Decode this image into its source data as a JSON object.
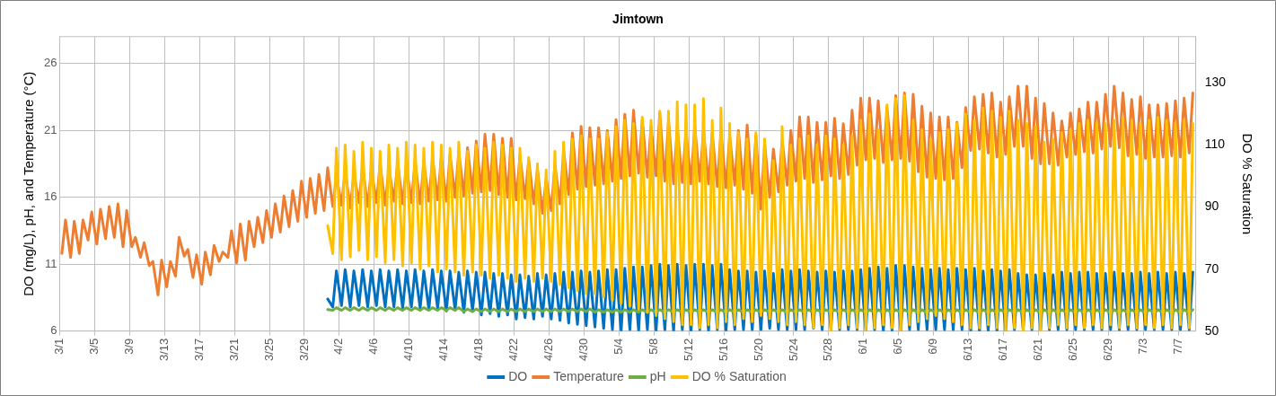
{
  "chart_data": {
    "type": "line",
    "title": "Jimtown",
    "ylabel": "DO (mg/L), pH, and Temperature (°C)",
    "y2label": "DO % Saturation",
    "xlim": [
      "--03-01",
      "--07-09"
    ],
    "ylim": [
      6,
      28
    ],
    "y2lim": [
      50,
      145
    ],
    "yticks": [
      6,
      11,
      16,
      21,
      26
    ],
    "y2ticks": [
      50,
      70,
      90,
      110,
      130
    ],
    "xticks": [
      {
        "value": "--03-01",
        "label": "3/1"
      },
      {
        "value": "--03-05",
        "label": "3/5"
      },
      {
        "value": "--03-09",
        "label": "3/9"
      },
      {
        "value": "--03-13",
        "label": "3/13"
      },
      {
        "value": "--03-17",
        "label": "3/17"
      },
      {
        "value": "--03-21",
        "label": "3/21"
      },
      {
        "value": "--03-25",
        "label": "3/25"
      },
      {
        "value": "--03-29",
        "label": "3/29"
      },
      {
        "value": "--04-02",
        "label": "4/2"
      },
      {
        "value": "--04-06",
        "label": "4/6"
      },
      {
        "value": "--04-10",
        "label": "4/10"
      },
      {
        "value": "--04-14",
        "label": "4/14"
      },
      {
        "value": "--04-18",
        "label": "4/18"
      },
      {
        "value": "--04-22",
        "label": "4/22"
      },
      {
        "value": "--04-26",
        "label": "4/26"
      },
      {
        "value": "--04-30",
        "label": "4/30"
      },
      {
        "value": "--05-04",
        "label": "5/4"
      },
      {
        "value": "--05-08",
        "label": "5/8"
      },
      {
        "value": "--05-12",
        "label": "5/12"
      },
      {
        "value": "--05-16",
        "label": "5/16"
      },
      {
        "value": "--05-20",
        "label": "5/20"
      },
      {
        "value": "--05-24",
        "label": "5/24"
      },
      {
        "value": "--05-28",
        "label": "5/28"
      },
      {
        "value": "--06-01",
        "label": "6/1"
      },
      {
        "value": "--06-05",
        "label": "6/5"
      },
      {
        "value": "--06-09",
        "label": "6/9"
      },
      {
        "value": "--06-13",
        "label": "6/13"
      },
      {
        "value": "--06-17",
        "label": "6/17"
      },
      {
        "value": "--06-21",
        "label": "6/21"
      },
      {
        "value": "--06-25",
        "label": "6/25"
      },
      {
        "value": "--06-29",
        "label": "6/29"
      },
      {
        "value": "--07-03",
        "label": "7/3"
      },
      {
        "value": "--07-07",
        "label": "7/7"
      }
    ],
    "grid": true,
    "legend": "bottom",
    "marker": "none",
    "line_style": "solid",
    "x": [
      "--03-01T06:00",
      "--03-01T16:00",
      "--03-02T06:00",
      "--03-02T16:00",
      "--03-03T06:00",
      "--03-03T16:00",
      "--03-04T06:00",
      "--03-04T16:00",
      "--03-05T06:00",
      "--03-05T16:00",
      "--03-06T06:00",
      "--03-06T16:00",
      "--03-07T06:00",
      "--03-07T16:00",
      "--03-08T06:00",
      "--03-08T16:00",
      "--03-09T06:00",
      "--03-09T16:00",
      "--03-10T06:00",
      "--03-10T16:00",
      "--03-11T06:00",
      "--03-11T16:00",
      "--03-12T06:00",
      "--03-12T16:00",
      "--03-13T06:00",
      "--03-13T16:00",
      "--03-14T06:00",
      "--03-14T16:00",
      "--03-15T06:00",
      "--03-15T16:00",
      "--03-16T06:00",
      "--03-16T16:00",
      "--03-17T06:00",
      "--03-17T16:00",
      "--03-18T06:00",
      "--03-18T16:00",
      "--03-19T06:00",
      "--03-19T16:00",
      "--03-20T06:00",
      "--03-20T16:00",
      "--03-21T06:00",
      "--03-21T16:00",
      "--03-22T06:00",
      "--03-22T16:00",
      "--03-23T06:00",
      "--03-23T16:00",
      "--03-24T06:00",
      "--03-24T16:00",
      "--03-25T06:00",
      "--03-25T16:00",
      "--03-26T06:00",
      "--03-26T16:00",
      "--03-27T06:00",
      "--03-27T16:00",
      "--03-28T06:00",
      "--03-28T16:00",
      "--03-29T06:00",
      "--03-29T16:00",
      "--03-30T06:00",
      "--03-30T16:00",
      "--03-31T06:00",
      "--03-31T16:00",
      "--04-01T06:00",
      "--04-01T16:00",
      "--04-02T06:00",
      "--04-02T16:00",
      "--04-03T06:00",
      "--04-03T16:00",
      "--04-04T06:00",
      "--04-04T16:00",
      "--04-05T06:00",
      "--04-05T16:00",
      "--04-06T06:00",
      "--04-06T16:00",
      "--04-07T06:00",
      "--04-07T16:00",
      "--04-08T06:00",
      "--04-08T16:00",
      "--04-09T06:00",
      "--04-09T16:00",
      "--04-10T06:00",
      "--04-10T16:00",
      "--04-11T06:00",
      "--04-11T16:00",
      "--04-12T06:00",
      "--04-12T16:00",
      "--04-13T06:00",
      "--04-13T16:00",
      "--04-14T06:00",
      "--04-14T16:00",
      "--04-15T06:00",
      "--04-15T16:00",
      "--04-16T06:00",
      "--04-16T16:00",
      "--04-17T06:00",
      "--04-17T16:00",
      "--04-18T06:00",
      "--04-18T16:00",
      "--04-19T06:00",
      "--04-19T16:00",
      "--04-20T06:00",
      "--04-20T16:00",
      "--04-21T06:00",
      "--04-21T16:00",
      "--04-22T06:00",
      "--04-22T16:00",
      "--04-23T06:00",
      "--04-23T16:00",
      "--04-24T06:00",
      "--04-24T16:00",
      "--04-25T06:00",
      "--04-25T16:00",
      "--04-26T06:00",
      "--04-26T16:00",
      "--04-27T06:00",
      "--04-27T16:00",
      "--04-28T06:00",
      "--04-28T16:00",
      "--04-29T06:00",
      "--04-29T16:00",
      "--04-30T06:00",
      "--04-30T16:00",
      "--05-01T06:00",
      "--05-01T16:00",
      "--05-02T06:00",
      "--05-02T16:00",
      "--05-03T06:00",
      "--05-03T16:00",
      "--05-04T06:00",
      "--05-04T16:00",
      "--05-05T06:00",
      "--05-05T16:00",
      "--05-06T06:00",
      "--05-06T16:00",
      "--05-07T06:00",
      "--05-07T16:00",
      "--05-08T06:00",
      "--05-08T16:00",
      "--05-09T06:00",
      "--05-09T16:00",
      "--05-10T06:00",
      "--05-10T16:00",
      "--05-11T06:00",
      "--05-11T16:00",
      "--05-12T06:00",
      "--05-12T16:00",
      "--05-13T06:00",
      "--05-13T16:00",
      "--05-14T06:00",
      "--05-14T16:00",
      "--05-15T06:00",
      "--05-15T16:00",
      "--05-16T06:00",
      "--05-16T16:00",
      "--05-17T06:00",
      "--05-17T16:00",
      "--05-18T06:00",
      "--05-18T16:00",
      "--05-19T06:00",
      "--05-19T16:00",
      "--05-20T06:00",
      "--05-20T16:00",
      "--05-21T06:00",
      "--05-21T16:00",
      "--05-22T06:00",
      "--05-22T16:00",
      "--05-23T06:00",
      "--05-23T16:00",
      "--05-24T06:00",
      "--05-24T16:00",
      "--05-25T06:00",
      "--05-25T16:00",
      "--05-26T06:00",
      "--05-26T16:00",
      "--05-27T06:00",
      "--05-27T16:00",
      "--05-28T06:00",
      "--05-28T16:00",
      "--05-29T06:00",
      "--05-29T16:00",
      "--05-30T06:00",
      "--05-30T16:00",
      "--05-31T06:00",
      "--05-31T16:00",
      "--06-01T06:00",
      "--06-01T16:00",
      "--06-02T06:00",
      "--06-02T16:00",
      "--06-03T06:00",
      "--06-03T16:00",
      "--06-04T06:00",
      "--06-04T16:00",
      "--06-05T06:00",
      "--06-05T16:00",
      "--06-06T06:00",
      "--06-06T16:00",
      "--06-07T06:00",
      "--06-07T16:00",
      "--06-08T06:00",
      "--06-08T16:00",
      "--06-09T06:00",
      "--06-09T16:00",
      "--06-10T06:00",
      "--06-10T16:00",
      "--06-11T06:00",
      "--06-11T16:00",
      "--06-12T06:00",
      "--06-12T16:00",
      "--06-13T06:00",
      "--06-13T16:00",
      "--06-14T06:00",
      "--06-14T16:00",
      "--06-15T06:00",
      "--06-15T16:00",
      "--06-16T06:00",
      "--06-16T16:00",
      "--06-17T06:00",
      "--06-17T16:00",
      "--06-18T06:00",
      "--06-18T16:00",
      "--06-19T06:00",
      "--06-19T16:00",
      "--06-20T06:00",
      "--06-20T16:00",
      "--06-21T06:00",
      "--06-21T16:00",
      "--06-22T06:00",
      "--06-22T16:00",
      "--06-23T06:00",
      "--06-23T16:00",
      "--06-24T06:00",
      "--06-24T16:00",
      "--06-25T06:00",
      "--06-25T16:00",
      "--06-26T06:00",
      "--06-26T16:00",
      "--06-27T06:00",
      "--06-27T16:00",
      "--06-28T06:00",
      "--06-28T16:00",
      "--06-29T06:00",
      "--06-29T16:00",
      "--06-30T06:00",
      "--06-30T16:00",
      "--07-01T06:00",
      "--07-01T16:00",
      "--07-02T06:00",
      "--07-02T16:00",
      "--07-03T06:00",
      "--07-03T16:00",
      "--07-04T06:00",
      "--07-04T16:00",
      "--07-05T06:00",
      "--07-05T16:00",
      "--07-06T06:00",
      "--07-06T16:00",
      "--07-07T06:00",
      "--07-07T16:00",
      "--07-08T06:00",
      "--07-08T16:00"
    ],
    "series": [
      {
        "name": "DO",
        "color": "#0070c0",
        "values": [
          null,
          null,
          null,
          null,
          null,
          null,
          null,
          null,
          null,
          null,
          null,
          null,
          null,
          null,
          null,
          null,
          null,
          null,
          null,
          null,
          null,
          null,
          null,
          null,
          null,
          null,
          null,
          null,
          null,
          null,
          null,
          null,
          null,
          null,
          null,
          null,
          null,
          null,
          null,
          null,
          null,
          null,
          null,
          null,
          null,
          null,
          null,
          null,
          null,
          null,
          null,
          null,
          null,
          null,
          null,
          null,
          null,
          null,
          null,
          null,
          null,
          8.4,
          7.8,
          10.5,
          7.9,
          10.6,
          7.8,
          10.5,
          7.9,
          10.6,
          7.8,
          10.5,
          7.9,
          10.6,
          7.8,
          10.5,
          7.8,
          10.6,
          7.7,
          10.5,
          7.8,
          10.6,
          7.7,
          10.5,
          7.6,
          10.6,
          7.7,
          10.5,
          7.5,
          10.5,
          7.6,
          10.4,
          7.4,
          10.5,
          7.5,
          10.4,
          7.2,
          10.4,
          7.3,
          10.3,
          7.1,
          10.3,
          7.2,
          10.2,
          6.9,
          10.2,
          7.0,
          10.1,
          6.9,
          10.3,
          7.1,
          10.2,
          6.9,
          10.3,
          6.8,
          10.4,
          6.6,
          10.4,
          6.5,
          10.5,
          6.4,
          10.4,
          6.3,
          10.5,
          6.2,
          10.6,
          6.1,
          10.6,
          6.0,
          10.7,
          6.1,
          10.8,
          6.0,
          10.8,
          6.1,
          10.9,
          6.0,
          11.0,
          6.1,
          10.9,
          6.0,
          11.0,
          6.1,
          10.9,
          6.0,
          11.0,
          6.1,
          11.0,
          6.0,
          10.9,
          6.1,
          11.0,
          6.0,
          10.6,
          6.1,
          10.5,
          6.1,
          10.5,
          6.1,
          10.4,
          6.1,
          10.5,
          6.2,
          10.3,
          6.1,
          10.6,
          6.1,
          10.5,
          6.1,
          10.6,
          6.1,
          10.5,
          6.2,
          10.4,
          6.1,
          10.5,
          6.1,
          10.4,
          6.1,
          10.5,
          6.1,
          10.5,
          6.1,
          10.6,
          6.0,
          10.7,
          6.1,
          10.8,
          6.0,
          10.7,
          6.0,
          10.9,
          6.0,
          10.9,
          6.1,
          10.8,
          6.1,
          10.7,
          6.1,
          10.6,
          6.1,
          10.7,
          6.1,
          10.6,
          6.1,
          10.7,
          6.1,
          10.6,
          6.0,
          10.7,
          6.0,
          10.5,
          6.0,
          10.6,
          6.0,
          10.5,
          6.0,
          10.6,
          6.1,
          10.3,
          6.1,
          10.2,
          6.1,
          10.2,
          6.1,
          10.3,
          6.1,
          10.2,
          6.1,
          10.4,
          6.1,
          10.3,
          6.1,
          10.4,
          6.1,
          10.4,
          6.1,
          10.3,
          6.1,
          10.3,
          6.1,
          10.4,
          6.1,
          10.3,
          6.1,
          10.3,
          6.1,
          10.4,
          6.1,
          10.3,
          6.1,
          10.4,
          6.1,
          10.3,
          6.1,
          10.4,
          6.1,
          10.3,
          6.1,
          10.4
        ]
      },
      {
        "name": "Temperature",
        "color": "#ed7d31",
        "values": [
          11.8,
          14.3,
          11.5,
          14.2,
          11.8,
          14.3,
          12.8,
          14.9,
          12.5,
          15.1,
          12.9,
          15.3,
          13.0,
          15.5,
          12.3,
          15.0,
          12.3,
          13.0,
          11.5,
          12.6,
          10.9,
          11.2,
          8.7,
          11.3,
          9.3,
          11.2,
          10.1,
          13.0,
          11.6,
          12.1,
          10.0,
          11.7,
          9.5,
          11.9,
          10.2,
          12.4,
          11.2,
          11.9,
          11.5,
          13.5,
          11.1,
          14.0,
          11.3,
          14.2,
          12.3,
          14.5,
          12.6,
          15.0,
          13.0,
          15.5,
          13.4,
          16.1,
          13.8,
          16.5,
          14.2,
          17.2,
          14.5,
          17.4,
          14.8,
          17.7,
          15.0,
          18.2,
          15.3,
          17.6,
          15.4,
          18.0,
          15.2,
          17.8,
          15.6,
          18.3,
          15.3,
          18.1,
          15.6,
          18.5,
          15.4,
          18.2,
          15.7,
          18.6,
          15.5,
          18.4,
          15.6,
          18.7,
          15.5,
          18.6,
          15.7,
          18.9,
          15.8,
          19.0,
          15.7,
          19.2,
          16.0,
          19.4,
          16.1,
          19.7,
          16.3,
          20.2,
          16.4,
          20.7,
          16.5,
          20.7,
          16.2,
          20.4,
          16.0,
          20.4,
          15.8,
          19.1,
          15.9,
          18.8,
          15.5,
          18.1,
          14.8,
          17.4,
          15.0,
          18.4,
          15.5,
          19.5,
          16.2,
          20.8,
          16.6,
          21.3,
          16.8,
          21.2,
          16.9,
          21.2,
          17.0,
          21.0,
          17.2,
          21.8,
          17.4,
          22.2,
          17.6,
          22.5,
          17.8,
          21.8,
          17.5,
          21.3,
          17.6,
          22.3,
          17.2,
          21.7,
          17.0,
          21.2,
          17.1,
          21.0,
          17.0,
          21.3,
          17.2,
          21.0,
          17.0,
          20.8,
          16.8,
          20.9,
          16.7,
          20.6,
          16.9,
          21.0,
          16.6,
          21.4,
          16.3,
          20.6,
          15.1,
          20.0,
          16.0,
          19.6,
          16.4,
          20.3,
          16.9,
          21.0,
          17.2,
          22.0,
          17.4,
          22.0,
          17.1,
          21.6,
          17.3,
          21.6,
          17.6,
          21.9,
          17.4,
          21.5,
          17.7,
          22.5,
          18.4,
          23.4,
          18.8,
          23.4,
          18.9,
          23.2,
          18.6,
          22.7,
          18.8,
          23.6,
          18.9,
          23.8,
          18.7,
          23.7,
          17.9,
          22.8,
          17.5,
          22.3,
          17.4,
          22.0,
          17.3,
          22.0,
          17.4,
          21.6,
          18.2,
          22.7,
          19.5,
          23.5,
          19.6,
          23.7,
          19.3,
          23.8,
          19.0,
          23.1,
          19.2,
          23.5,
          19.8,
          24.3,
          19.8,
          24.3,
          18.9,
          23.4,
          18.5,
          23.0,
          18.5,
          22.3,
          18.4,
          21.7,
          19.0,
          22.3,
          19.2,
          22.6,
          19.4,
          23.1,
          19.3,
          23.1,
          19.6,
          23.7,
          19.8,
          24.3,
          19.7,
          23.8,
          19.1,
          23.3,
          19.2,
          23.5,
          18.9,
          22.9,
          19.0,
          22.9,
          19.0,
          23.0,
          19.1,
          23.2,
          19.0,
          23.4,
          19.3,
          23.8
        ]
      },
      {
        "name": "pH",
        "color": "#70ad47",
        "values": [
          null,
          null,
          null,
          null,
          null,
          null,
          null,
          null,
          null,
          null,
          null,
          null,
          null,
          null,
          null,
          null,
          null,
          null,
          null,
          null,
          null,
          null,
          null,
          null,
          null,
          null,
          null,
          null,
          null,
          null,
          null,
          null,
          null,
          null,
          null,
          null,
          null,
          null,
          null,
          null,
          null,
          null,
          null,
          null,
          null,
          null,
          null,
          null,
          null,
          null,
          null,
          null,
          null,
          null,
          null,
          null,
          null,
          null,
          null,
          null,
          null,
          7.6,
          7.55,
          7.75,
          7.55,
          7.75,
          7.55,
          7.75,
          7.55,
          7.75,
          7.55,
          7.75,
          7.55,
          7.75,
          7.55,
          7.75,
          7.55,
          7.75,
          7.55,
          7.75,
          7.55,
          7.75,
          7.55,
          7.75,
          7.55,
          7.75,
          7.55,
          7.75,
          7.55,
          7.75,
          7.55,
          7.75,
          7.45,
          7.65,
          7.45,
          7.65,
          7.45,
          7.65,
          7.45,
          7.65,
          7.45,
          7.65,
          7.45,
          7.65,
          7.45,
          7.65,
          7.45,
          7.65,
          7.45,
          7.65,
          7.45,
          7.65,
          7.45,
          7.65,
          7.45,
          7.65,
          7.45,
          7.65,
          7.45,
          7.65,
          7.45,
          7.65,
          7.4,
          7.6,
          7.4,
          7.6,
          7.4,
          7.6,
          7.4,
          7.6,
          7.4,
          7.6,
          7.4,
          7.6,
          7.4,
          7.6,
          7.4,
          7.6,
          7.4,
          7.6,
          7.4,
          7.6,
          7.4,
          7.6,
          7.4,
          7.6,
          7.4,
          7.6,
          7.4,
          7.6,
          7.4,
          7.6,
          7.4,
          7.6,
          7.4,
          7.6,
          7.4,
          7.6,
          7.4,
          7.6,
          7.4,
          7.6,
          7.4,
          7.6,
          7.4,
          7.6,
          7.4,
          7.6,
          7.4,
          7.6,
          7.4,
          7.6,
          7.4,
          7.6,
          7.4,
          7.6,
          7.4,
          7.6,
          7.4,
          7.6,
          7.4,
          7.6,
          7.4,
          7.6,
          7.35,
          7.6,
          7.35,
          7.6,
          7.35,
          7.6,
          7.35,
          7.6,
          7.35,
          7.6,
          7.35,
          7.6,
          7.35,
          7.6,
          7.35,
          7.6,
          7.35,
          7.6,
          7.35,
          7.6,
          7.35,
          7.6,
          7.35,
          7.6,
          7.35,
          7.6,
          7.35,
          7.6,
          7.35,
          7.6,
          7.35,
          7.6,
          7.35,
          7.6,
          7.35,
          7.6,
          7.35,
          7.6,
          7.35,
          7.6,
          7.35,
          7.6,
          7.35,
          7.6,
          7.35,
          7.6,
          7.35,
          7.6,
          7.35,
          7.6,
          7.35,
          7.6,
          7.35,
          7.6,
          7.35,
          7.6,
          7.35,
          7.6,
          7.35,
          7.6,
          7.35,
          7.6,
          7.35,
          7.6,
          7.35,
          7.6,
          7.35,
          7.6,
          7.35,
          7.6,
          7.35,
          7.6,
          7.35,
          7.6,
          7.35,
          7.6
        ]
      },
      {
        "name": "DO % Saturation",
        "color": "#ffc000",
        "axis": "y2",
        "values": [
          null,
          null,
          null,
          null,
          null,
          null,
          null,
          null,
          null,
          null,
          null,
          null,
          null,
          null,
          null,
          null,
          null,
          null,
          null,
          null,
          null,
          null,
          null,
          null,
          null,
          null,
          null,
          null,
          null,
          null,
          null,
          null,
          null,
          null,
          null,
          null,
          null,
          null,
          null,
          null,
          null,
          null,
          null,
          null,
          null,
          null,
          null,
          null,
          null,
          null,
          null,
          null,
          null,
          null,
          null,
          null,
          null,
          null,
          null,
          null,
          null,
          84,
          75,
          109,
          73,
          110,
          74,
          108,
          76,
          111,
          73,
          109,
          74,
          108,
          72,
          110,
          73,
          109,
          71,
          111,
          72,
          110,
          70,
          109,
          71,
          111,
          69,
          110,
          70,
          109,
          69,
          111,
          68,
          108,
          69,
          110,
          68,
          109,
          67,
          111,
          68,
          110,
          67,
          109,
          66,
          109,
          67,
          106,
          66,
          104,
          67,
          102,
          66,
          108,
          65,
          111,
          64,
          112,
          63,
          113,
          62,
          112,
          62,
          112,
          61,
          114,
          60,
          116,
          59,
          118,
          58,
          117,
          57,
          119,
          56,
          118,
          55,
          121,
          54,
          121,
          53,
          124,
          52,
          123,
          52,
          123,
          51,
          125,
          52,
          118,
          51,
          122,
          53,
          117,
          52,
          114,
          54,
          112,
          53,
          114,
          55,
          112,
          54,
          105,
          53,
          116,
          52,
          110,
          53,
          112,
          52,
          113,
          51,
          110,
          52,
          113,
          50,
          112,
          51,
          110,
          52,
          113,
          51,
          118,
          50,
          120,
          51,
          115,
          52,
          123,
          51,
          125,
          50,
          126,
          52,
          118,
          53,
          115,
          54,
          112,
          55,
          114,
          54,
          115,
          53,
          117,
          52,
          120,
          51,
          118,
          51,
          122,
          52,
          121,
          51,
          119,
          50,
          121,
          51,
          118,
          50,
          117,
          51,
          116,
          50,
          111,
          51,
          112,
          52,
          114,
          51,
          115,
          52,
          117,
          51,
          118,
          52,
          117,
          51,
          117,
          52,
          118,
          51,
          119,
          52,
          118,
          51,
          117,
          52,
          118,
          51,
          119,
          52,
          118,
          51,
          117,
          52,
          118,
          51,
          117
        ]
      }
    ]
  }
}
